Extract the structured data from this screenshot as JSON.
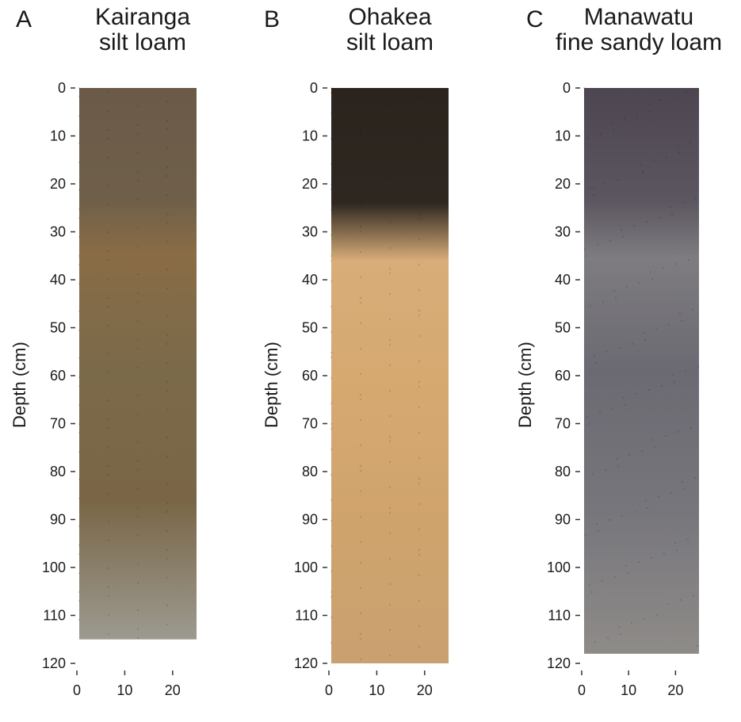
{
  "panels": [
    {
      "letter": "A",
      "title_lines": [
        "Kairanga",
        "silt loam"
      ],
      "ylabel": "Depth (cm)",
      "depth_max": 115,
      "colors": {
        "top": "#6b5a48",
        "upper": "#6e5f4a",
        "mottle": "#8a6c45",
        "mid": "#7b6a4a",
        "lower": "#7a6647",
        "base": "#9c9a90"
      }
    },
    {
      "letter": "B",
      "title_lines": [
        "Ohakea",
        "silt loam"
      ],
      "ylabel": "Depth (cm)",
      "depth_max": 120,
      "colors": {
        "top": "#2b241e",
        "upper": "#2e2720",
        "mottle": "#d8ad78",
        "mid": "#d6a971",
        "lower": "#cfa46c",
        "base": "#c9a070"
      }
    },
    {
      "letter": "C",
      "title_lines": [
        "Manawatu",
        "fine sandy loam"
      ],
      "ylabel": "Depth (cm)",
      "depth_max": 118,
      "colors": {
        "top": "#4d4650",
        "upper": "#5c5660",
        "mottle": "#7e7c80",
        "mid": "#6b6a72",
        "lower": "#77767c",
        "base": "#8e8b88"
      }
    }
  ],
  "y_ticks": [
    0,
    10,
    20,
    30,
    40,
    50,
    60,
    70,
    80,
    90,
    100,
    110,
    120
  ],
  "x_ticks": [
    0,
    10,
    20
  ]
}
